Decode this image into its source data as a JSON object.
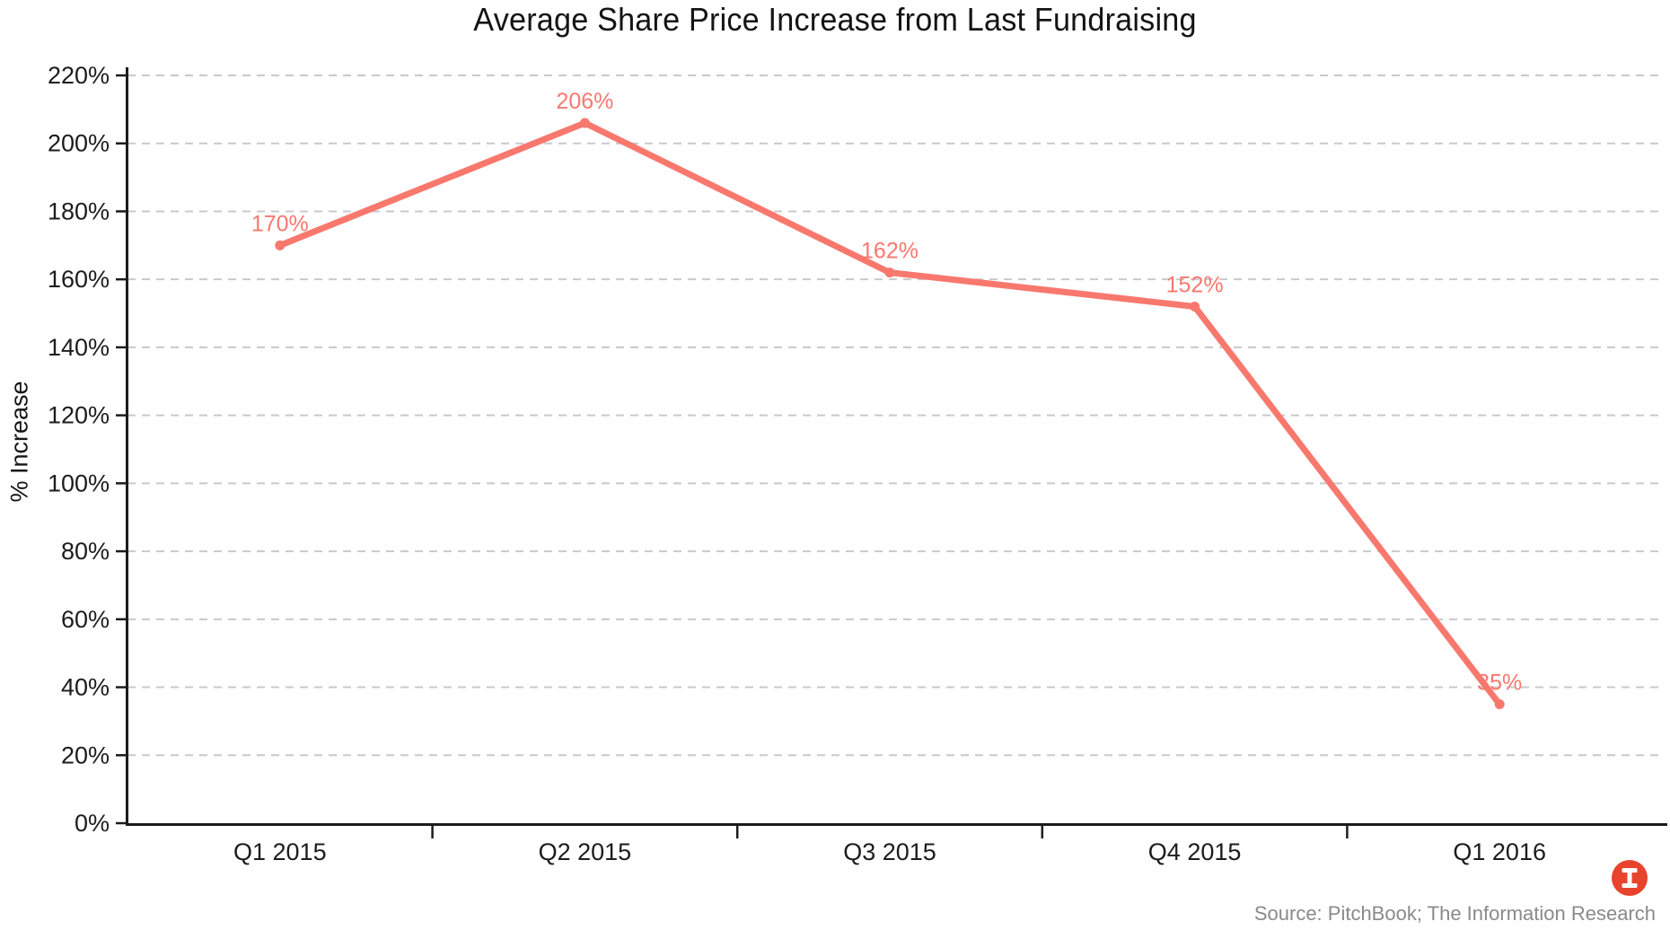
{
  "chart_data": {
    "type": "line",
    "title": "Average Share Price Increase from Last Fundraising",
    "xlabel": "",
    "ylabel": "% Increase",
    "categories": [
      "Q1 2015",
      "Q2 2015",
      "Q3 2015",
      "Q4 2015",
      "Q1 2016"
    ],
    "values": [
      170,
      206,
      162,
      152,
      35
    ],
    "point_labels": [
      "170%",
      "206%",
      "162%",
      "152%",
      "35%"
    ],
    "ylim": [
      0,
      220
    ],
    "ytick_step": 20,
    "ytick_labels": [
      "0%",
      "20%",
      "40%",
      "60%",
      "80%",
      "100%",
      "120%",
      "140%",
      "160%",
      "180%",
      "200%",
      "220%"
    ],
    "grid": "horizontal-dashed",
    "legend": "none",
    "colors": {
      "line": "#f8786e",
      "point": "#f8786e",
      "point_label": "#f8786e",
      "grid": "#c9c9c9",
      "axis": "#1c1c1c",
      "tick_text": "#1c1c1c",
      "source_text": "#8a8a8a",
      "logo_bg": "#e8432d",
      "logo_glyph": "#ffffff"
    }
  },
  "footer": {
    "source": "Source: PitchBook; The Information Research",
    "logo_icon": "the-information-i-logo"
  }
}
